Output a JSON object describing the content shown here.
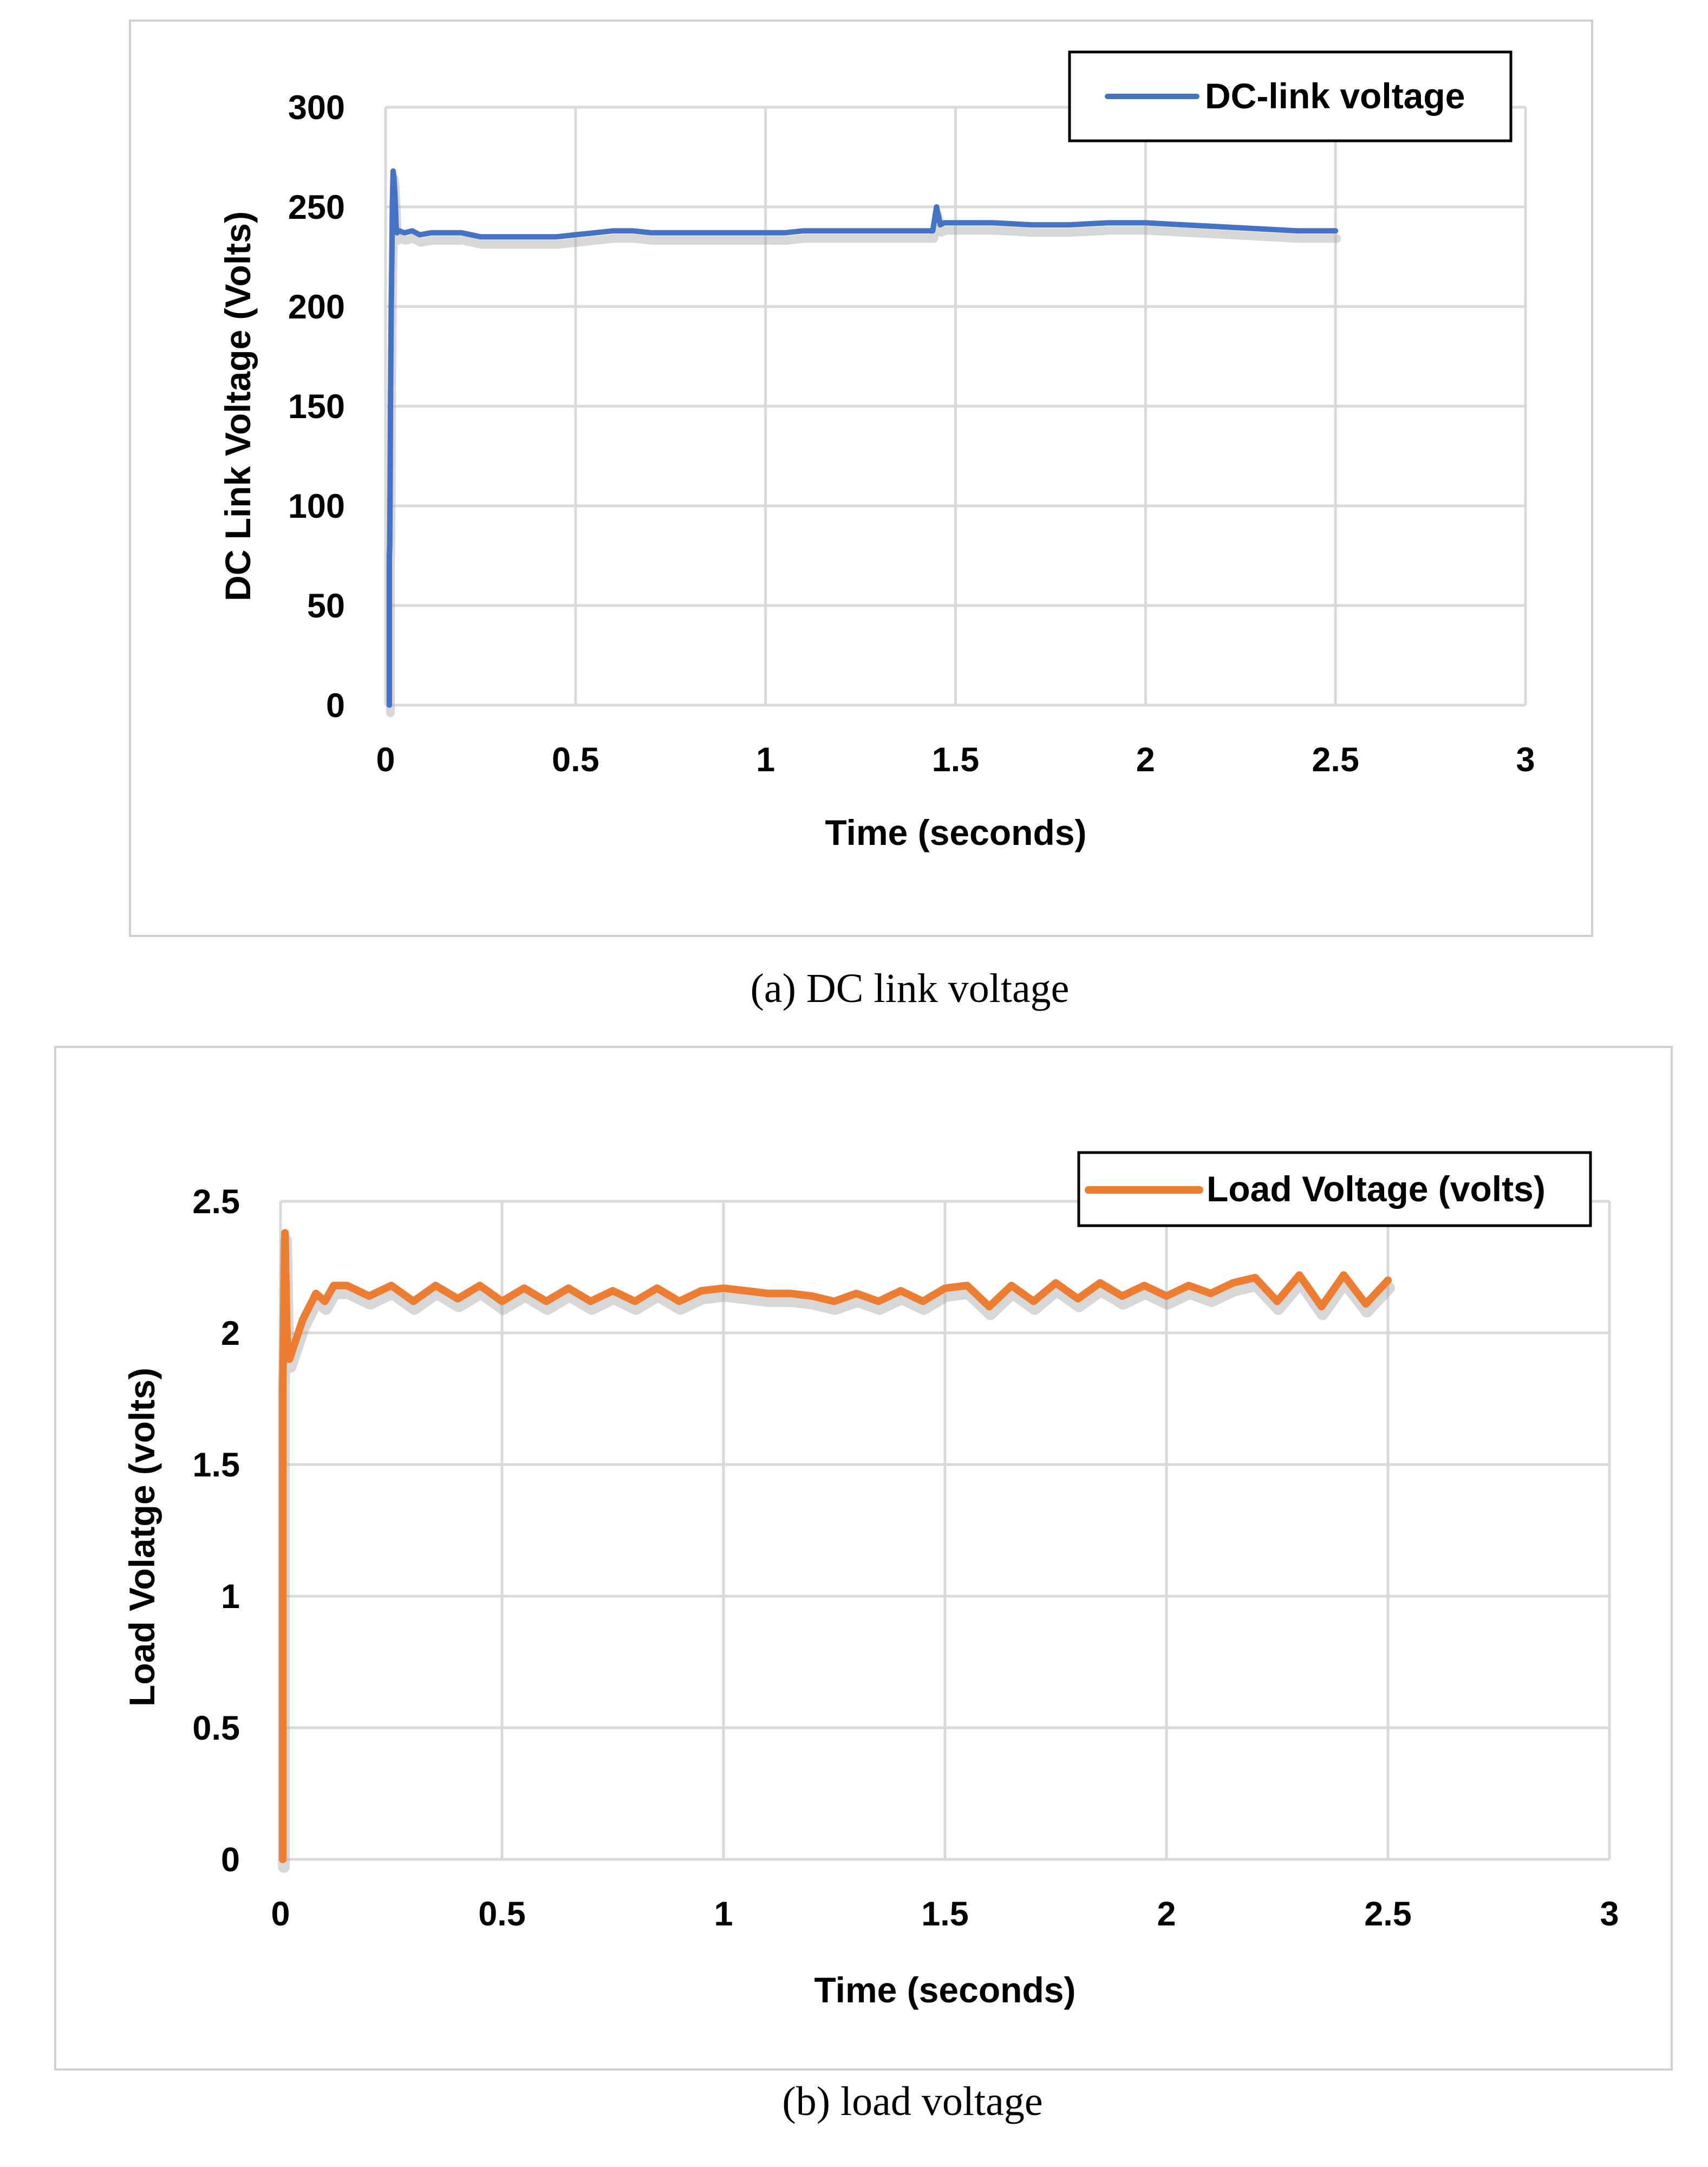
{
  "chart_data": [
    {
      "type": "line",
      "title": "",
      "caption": "(a) DC link voltage",
      "xlabel": "Time (seconds)",
      "ylabel": "DC Link Voltage (Volts)",
      "xlim": [
        0,
        3
      ],
      "ylim": [
        0,
        300
      ],
      "x_ticks": [
        "0",
        "0.5",
        "1",
        "1.5",
        "2",
        "2.5",
        "3"
      ],
      "y_ticks": [
        "0",
        "50",
        "100",
        "150",
        "200",
        "250",
        "300"
      ],
      "grid": true,
      "legend_position": "top-right",
      "series_color": "#4472c4",
      "series": [
        {
          "name": "DC-link voltage",
          "x": [
            0.01,
            0.01,
            0.011,
            0.012,
            0.013,
            0.015,
            0.017,
            0.018,
            0.02,
            0.022,
            0.025,
            0.028,
            0.03,
            0.035,
            0.05,
            0.07,
            0.09,
            0.12,
            0.15,
            0.2,
            0.25,
            0.3,
            0.35,
            0.4,
            0.45,
            0.5,
            0.55,
            0.6,
            0.65,
            0.7,
            0.75,
            0.8,
            0.85,
            0.9,
            0.95,
            1.0,
            1.05,
            1.1,
            1.15,
            1.2,
            1.25,
            1.3,
            1.35,
            1.4,
            1.44,
            1.45,
            1.46,
            1.47,
            1.5,
            1.6,
            1.7,
            1.8,
            1.9,
            2.0,
            2.1,
            2.2,
            2.3,
            2.4,
            2.5
          ],
          "y": [
            0,
            75,
            80,
            110,
            150,
            200,
            230,
            250,
            268,
            265,
            255,
            240,
            237,
            238,
            237,
            238,
            236,
            237,
            237,
            237,
            235,
            235,
            235,
            235,
            235,
            236,
            237,
            238,
            238,
            237,
            237,
            237,
            237,
            237,
            237,
            237,
            237,
            238,
            238,
            238,
            238,
            238,
            238,
            238,
            238,
            250,
            241,
            242,
            242,
            242,
            241,
            241,
            242,
            242,
            241,
            240,
            239,
            238,
            238
          ]
        }
      ]
    },
    {
      "type": "line",
      "title": "",
      "caption": "(b) load voltage",
      "xlabel": "Time (seconds)",
      "ylabel": "Load Volatge (volts)",
      "xlim": [
        0,
        3
      ],
      "ylim": [
        0,
        2.5
      ],
      "x_ticks": [
        "0",
        "0.5",
        "1",
        "1.5",
        "2",
        "2.5",
        "3"
      ],
      "y_ticks": [
        "0",
        "0.5",
        "1",
        "1.5",
        "2",
        "2.5"
      ],
      "grid": true,
      "legend_position": "top-right",
      "series_color": "#ed7d31",
      "series": [
        {
          "name": "Load Voltage (volts)",
          "x": [
            0.005,
            0.005,
            0.007,
            0.01,
            0.012,
            0.015,
            0.02,
            0.03,
            0.05,
            0.08,
            0.1,
            0.12,
            0.15,
            0.2,
            0.25,
            0.3,
            0.35,
            0.4,
            0.45,
            0.5,
            0.55,
            0.6,
            0.65,
            0.7,
            0.75,
            0.8,
            0.85,
            0.9,
            0.95,
            1.0,
            1.05,
            1.1,
            1.15,
            1.2,
            1.25,
            1.3,
            1.35,
            1.4,
            1.45,
            1.5,
            1.55,
            1.6,
            1.65,
            1.7,
            1.75,
            1.8,
            1.85,
            1.9,
            1.95,
            2.0,
            2.05,
            2.1,
            2.15,
            2.2,
            2.25,
            2.3,
            2.35,
            2.4,
            2.45,
            2.5
          ],
          "y": [
            0,
            1.8,
            2.0,
            2.38,
            2.2,
            1.95,
            1.9,
            1.95,
            2.05,
            2.15,
            2.12,
            2.18,
            2.18,
            2.14,
            2.18,
            2.12,
            2.18,
            2.13,
            2.18,
            2.12,
            2.17,
            2.12,
            2.17,
            2.12,
            2.16,
            2.12,
            2.17,
            2.12,
            2.16,
            2.17,
            2.16,
            2.15,
            2.15,
            2.14,
            2.12,
            2.15,
            2.12,
            2.16,
            2.12,
            2.17,
            2.18,
            2.1,
            2.18,
            2.12,
            2.19,
            2.13,
            2.19,
            2.14,
            2.18,
            2.14,
            2.18,
            2.15,
            2.19,
            2.21,
            2.12,
            2.22,
            2.1,
            2.22,
            2.11,
            2.2
          ]
        }
      ]
    }
  ]
}
